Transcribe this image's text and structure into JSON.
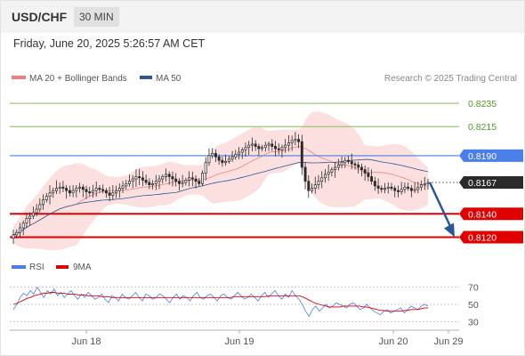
{
  "header": {
    "symbol": "USD/CHF",
    "interval": "30 MIN"
  },
  "timestamp": "Friday, June 20, 2025 5:26:57 AM CET",
  "legend": {
    "bollinger_label": "MA 20 + Bollinger Bands",
    "ma50_label": "MA 50",
    "credit": "Research © 2025 Trading Central"
  },
  "colors": {
    "bollinger": "#f08080",
    "ma50": "#2b5797",
    "support": "#e00000",
    "resistance": "#7ec05a",
    "pivot": "#4a7ee8",
    "arrow": "#2a579a",
    "candle_up": "#2a2a2a",
    "candle_down": "#2a2a2a"
  },
  "chart_data": [
    {
      "type": "candlestick",
      "x_labels": [
        "Jun 18",
        "Jun 19",
        "Jun 20",
        "Jun 29"
      ],
      "ylim": [
        0.8115,
        0.8245
      ],
      "levels": [
        {
          "value": 0.8235,
          "label": "0.8235",
          "kind": "resistance"
        },
        {
          "value": 0.8215,
          "label": "0.8215",
          "kind": "resistance"
        },
        {
          "value": 0.819,
          "label": "0.8190",
          "kind": "pivot"
        },
        {
          "value": 0.8167,
          "label": "0.8167",
          "kind": "last"
        },
        {
          "value": 0.814,
          "label": "0.8140",
          "kind": "support"
        },
        {
          "value": 0.812,
          "label": "0.8120",
          "kind": "support"
        }
      ],
      "close_series": [
        0.8122,
        0.8124,
        0.8128,
        0.8132,
        0.8136,
        0.8138,
        0.8141,
        0.8144,
        0.8148,
        0.8152,
        0.8155,
        0.8158,
        0.816,
        0.8162,
        0.8163,
        0.8162,
        0.816,
        0.8158,
        0.816,
        0.8162,
        0.8163,
        0.8161,
        0.8159,
        0.8158,
        0.816,
        0.8162,
        0.8161,
        0.816,
        0.8158,
        0.8156,
        0.8158,
        0.816,
        0.8162,
        0.8164,
        0.8166,
        0.8168,
        0.817,
        0.8172,
        0.8171,
        0.8169,
        0.8167,
        0.8165,
        0.8166,
        0.8168,
        0.817,
        0.8172,
        0.8174,
        0.8172,
        0.817,
        0.8168,
        0.8166,
        0.8167,
        0.8169,
        0.8171,
        0.817,
        0.8168,
        0.8166,
        0.8175,
        0.8184,
        0.819,
        0.8192,
        0.8189,
        0.8186,
        0.8184,
        0.8185,
        0.8187,
        0.8189,
        0.8191,
        0.8193,
        0.8195,
        0.8197,
        0.8199,
        0.82,
        0.8198,
        0.8196,
        0.8197,
        0.8199,
        0.82,
        0.8198,
        0.8196,
        0.8195,
        0.8197,
        0.8199,
        0.8201,
        0.8203,
        0.8204,
        0.8202,
        0.818,
        0.8168,
        0.816,
        0.8162,
        0.8165,
        0.8168,
        0.8171,
        0.8174,
        0.8176,
        0.8178,
        0.818,
        0.8182,
        0.8184,
        0.8186,
        0.8185,
        0.8183,
        0.8182,
        0.818,
        0.8178,
        0.8175,
        0.8172,
        0.8168,
        0.8164,
        0.8162,
        0.8161,
        0.8162,
        0.8163,
        0.8162,
        0.816,
        0.8159,
        0.8161,
        0.8163,
        0.8162,
        0.816,
        0.8161,
        0.8163,
        0.8165,
        0.8166,
        0.8167
      ]
    },
    {
      "type": "line",
      "title": "",
      "series": [
        {
          "name": "RSI",
          "color": "#4a7ee8"
        },
        {
          "name": "9MA",
          "color": "#e00000"
        }
      ],
      "y_ticks": [
        30,
        50,
        70
      ],
      "ylim": [
        20,
        80
      ],
      "rsi_values": [
        44,
        50,
        58,
        63,
        60,
        66,
        62,
        70,
        64,
        58,
        66,
        62,
        68,
        60,
        64,
        58,
        62,
        66,
        60,
        56,
        62,
        58,
        64,
        60,
        56,
        58,
        62,
        56,
        52,
        60,
        58,
        54,
        62,
        58,
        56,
        60,
        64,
        58,
        54,
        62,
        60,
        56,
        58,
        62,
        60,
        56,
        52,
        58,
        62,
        56,
        60,
        58,
        54,
        60,
        64,
        58,
        56,
        60,
        62,
        58,
        54,
        60,
        62,
        58,
        56,
        60,
        64,
        60,
        56,
        58,
        62,
        58,
        54,
        60,
        64,
        58,
        62,
        66,
        60,
        56,
        62,
        58,
        66,
        60,
        56,
        50,
        42,
        36,
        44,
        48,
        42,
        46,
        50,
        46,
        48,
        52,
        50,
        48,
        46,
        50,
        52,
        48,
        44,
        46,
        50,
        46,
        42,
        40,
        38,
        42,
        44,
        40,
        42,
        44,
        46,
        40,
        44,
        48,
        46,
        44,
        48,
        50,
        48
      ],
      "ma_values": [
        50,
        51,
        53,
        55,
        57,
        58,
        60,
        61,
        62,
        63,
        63,
        64,
        64,
        63,
        63,
        63,
        62,
        62,
        62,
        61,
        61,
        61,
        60,
        60,
        60,
        60,
        59,
        59,
        59,
        58,
        58,
        58,
        58,
        58,
        58,
        58,
        58,
        58,
        58,
        58,
        58,
        58,
        58,
        58,
        58,
        58,
        58,
        58,
        58,
        58,
        58,
        58,
        58,
        58,
        58,
        58,
        58,
        58,
        58,
        58,
        58,
        58,
        58,
        58,
        58,
        59,
        59,
        59,
        59,
        59,
        59,
        59,
        59,
        59,
        59,
        60,
        60,
        60,
        60,
        60,
        60,
        60,
        60,
        60,
        60,
        59,
        57,
        55,
        53,
        51,
        50,
        49,
        48,
        47,
        47,
        47,
        47,
        48,
        48,
        48,
        48,
        48,
        48,
        47,
        47,
        46,
        45,
        44,
        43,
        43,
        42,
        42,
        42,
        42,
        42,
        43,
        43,
        44,
        44,
        44,
        45,
        46,
        46
      ]
    }
  ]
}
